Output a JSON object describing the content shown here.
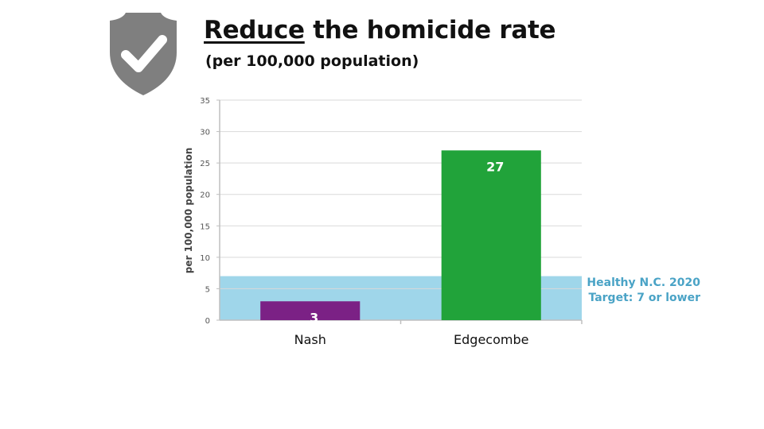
{
  "header": {
    "title_emphasis": "Reduce",
    "title_rest": " the homicide rate",
    "subtitle": "(per 100,000 population)",
    "badge_icon": "shield-check-icon",
    "badge_color": "#7f7f7f"
  },
  "target": {
    "line1": "Healthy N.C. 2020",
    "line2": "Target: 7 or lower",
    "value": 7,
    "color": "#9fd6ea",
    "label_color": "#4aa3c6"
  },
  "chart_data": {
    "type": "bar",
    "title": "Reduce the homicide rate",
    "subtitle": "(per 100,000 population)",
    "ylabel": "per 100,000 population",
    "xlabel": "",
    "categories": [
      "Nash",
      "Edgecombe"
    ],
    "values": [
      3,
      27
    ],
    "value_labels": [
      "3",
      "27"
    ],
    "bar_colors": [
      "#7b2185",
      "#21a33a"
    ],
    "ylim": [
      0,
      35
    ],
    "yticks": [
      "0",
      "5",
      "10",
      "15",
      "20",
      "25",
      "30",
      "35"
    ],
    "grid": true,
    "legend": "none",
    "annotations": [
      "Healthy N.C. 2020",
      "Target: 7 or lower"
    ]
  }
}
